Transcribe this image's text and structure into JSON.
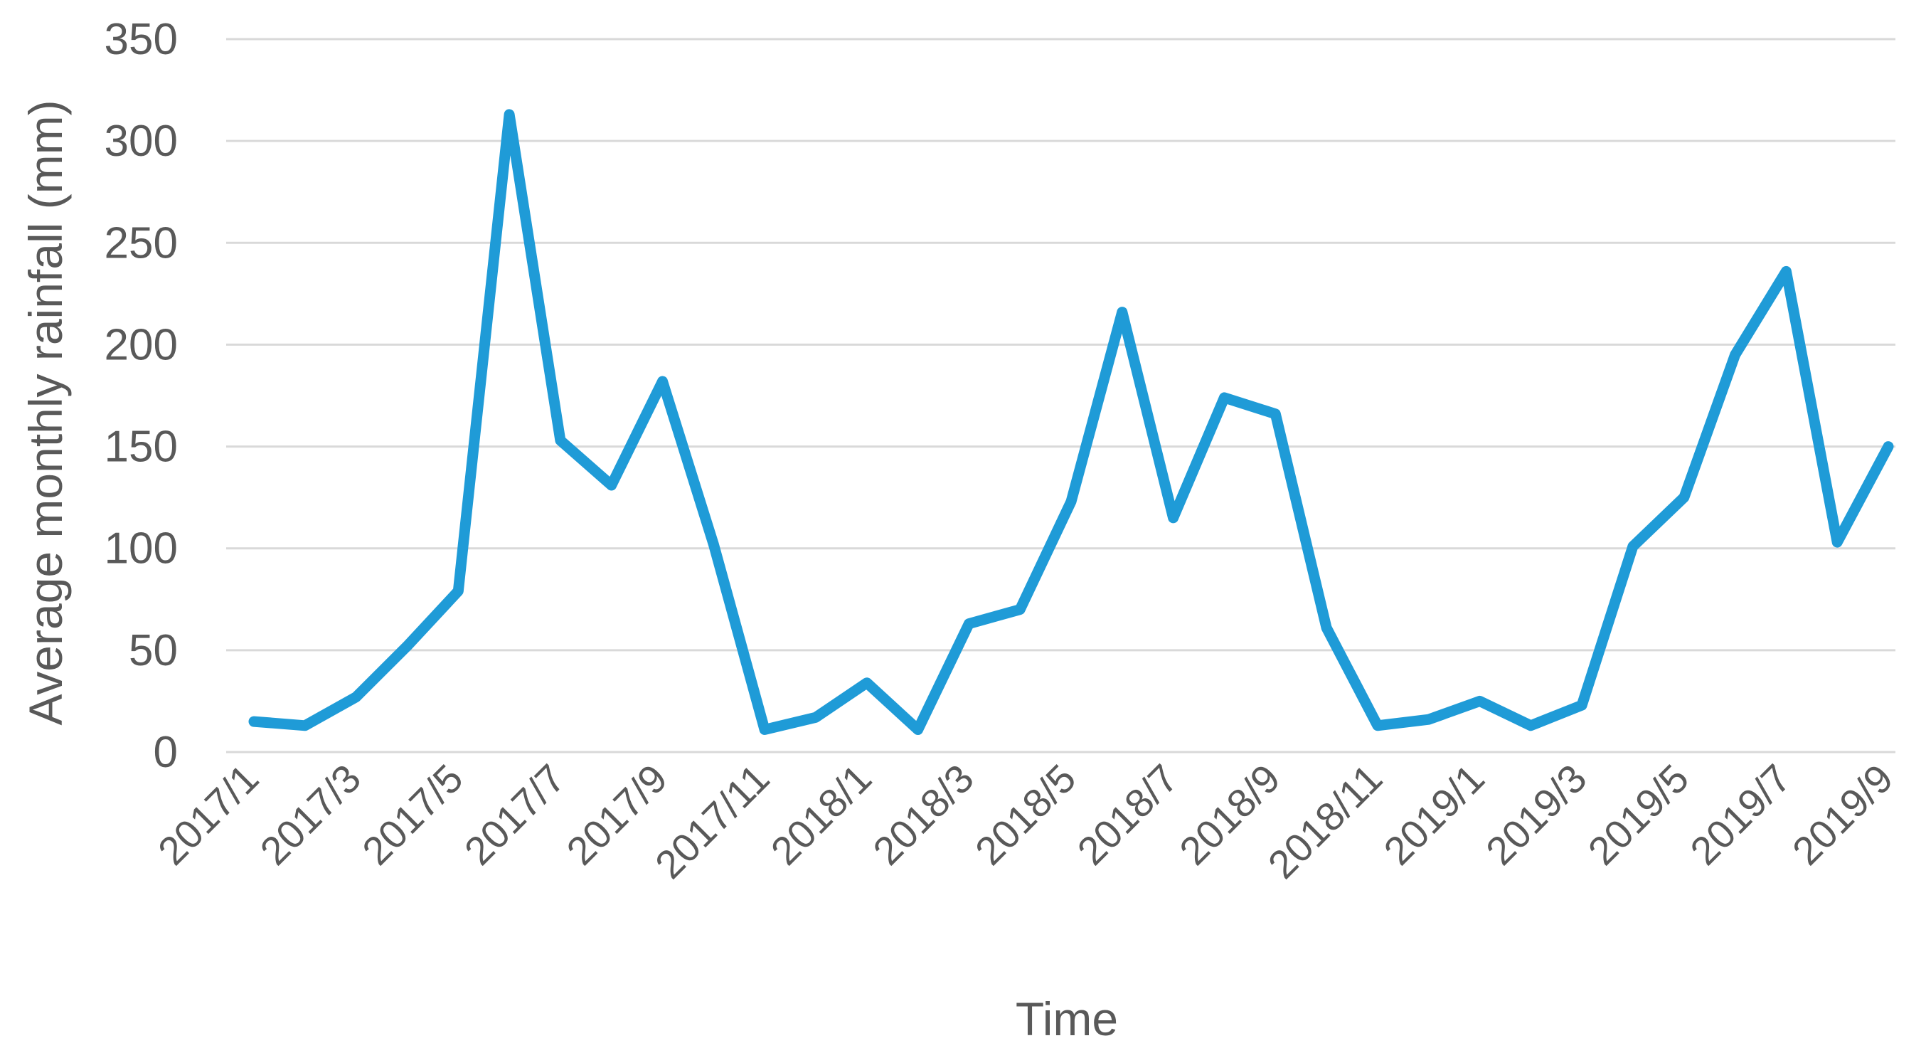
{
  "chart_data": {
    "type": "line",
    "title": "",
    "xlabel": "Time",
    "ylabel": "Average monthly rainfall (mm)",
    "ylim": [
      0,
      350
    ],
    "yticks": [
      "0",
      "50",
      "100",
      "150",
      "200",
      "250",
      "300",
      "350"
    ],
    "grid": "horizontal",
    "legend": "none",
    "colors": {
      "series": "#1f9bd7",
      "grid": "#d9d9d9",
      "text": "#595959"
    },
    "x": [
      "2017/1",
      "2017/2",
      "2017/3",
      "2017/4",
      "2017/5",
      "2017/6",
      "2017/7",
      "2017/8",
      "2017/9",
      "2017/10",
      "2017/11",
      "2017/12",
      "2018/1",
      "2018/2",
      "2018/3",
      "2018/4",
      "2018/5",
      "2018/6",
      "2018/7",
      "2018/8",
      "2018/9",
      "2018/10",
      "2018/11",
      "2018/12",
      "2019/1",
      "2019/2",
      "2019/3",
      "2019/4",
      "2019/5",
      "2019/6",
      "2019/7",
      "2019/8",
      "2019/9"
    ],
    "xtick_labels": [
      "2017/1",
      "2017/3",
      "2017/5",
      "2017/7",
      "2017/9",
      "2017/11",
      "2018/1",
      "2018/3",
      "2018/5",
      "2018/7",
      "2018/9",
      "2018/11",
      "2019/1",
      "2019/3",
      "2019/5",
      "2019/7",
      "2019/9"
    ],
    "series": [
      {
        "values": [
          15,
          13,
          27,
          52,
          79,
          313,
          153,
          131,
          182,
          102,
          11,
          17,
          34,
          11,
          63,
          70,
          123,
          216,
          115,
          174,
          166,
          61,
          13,
          16,
          25,
          13,
          23,
          101,
          125,
          195,
          236,
          103,
          150
        ]
      }
    ]
  }
}
